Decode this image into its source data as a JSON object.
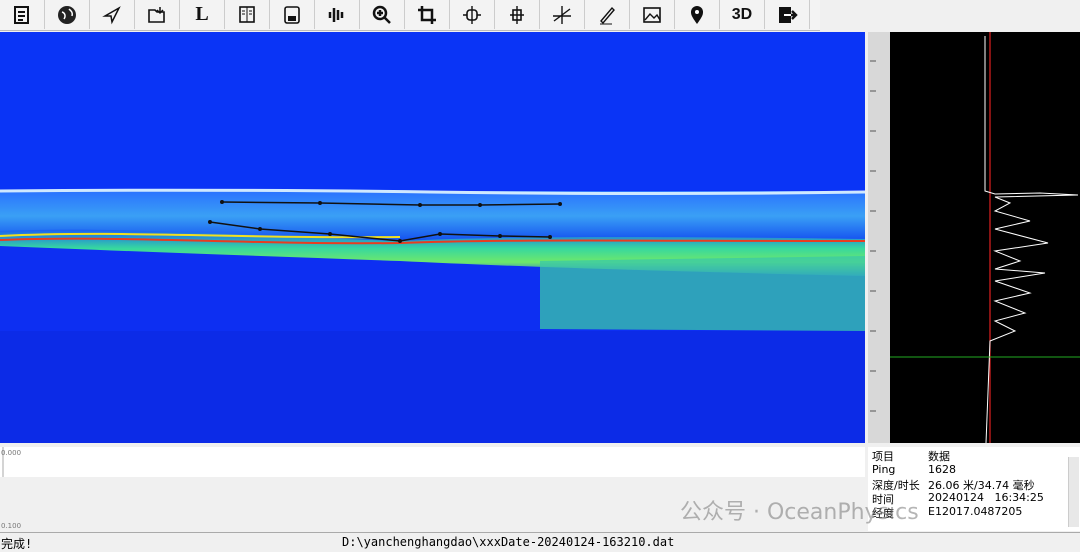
{
  "toolbar": {
    "text_buttons": [
      "L",
      "3D"
    ]
  },
  "bottom_strip": {
    "top_label": "0.000",
    "bottom_label": "0.100"
  },
  "info_panel": {
    "header": [
      "项目",
      "数据"
    ],
    "rows": [
      [
        "Ping",
        "1628"
      ],
      [
        "深度/时长",
        "26.06 米/34.74 毫秒"
      ],
      [
        "时间",
        "20240124   16:34:25"
      ],
      [
        "经度",
        "E12017.0487205"
      ]
    ]
  },
  "status_bar": {
    "status": "完成!",
    "file": "D:\\yanchenghangdao\\xxxDate-20240124-163210.dat"
  },
  "watermark": "公众号 · OceanPhysics"
}
